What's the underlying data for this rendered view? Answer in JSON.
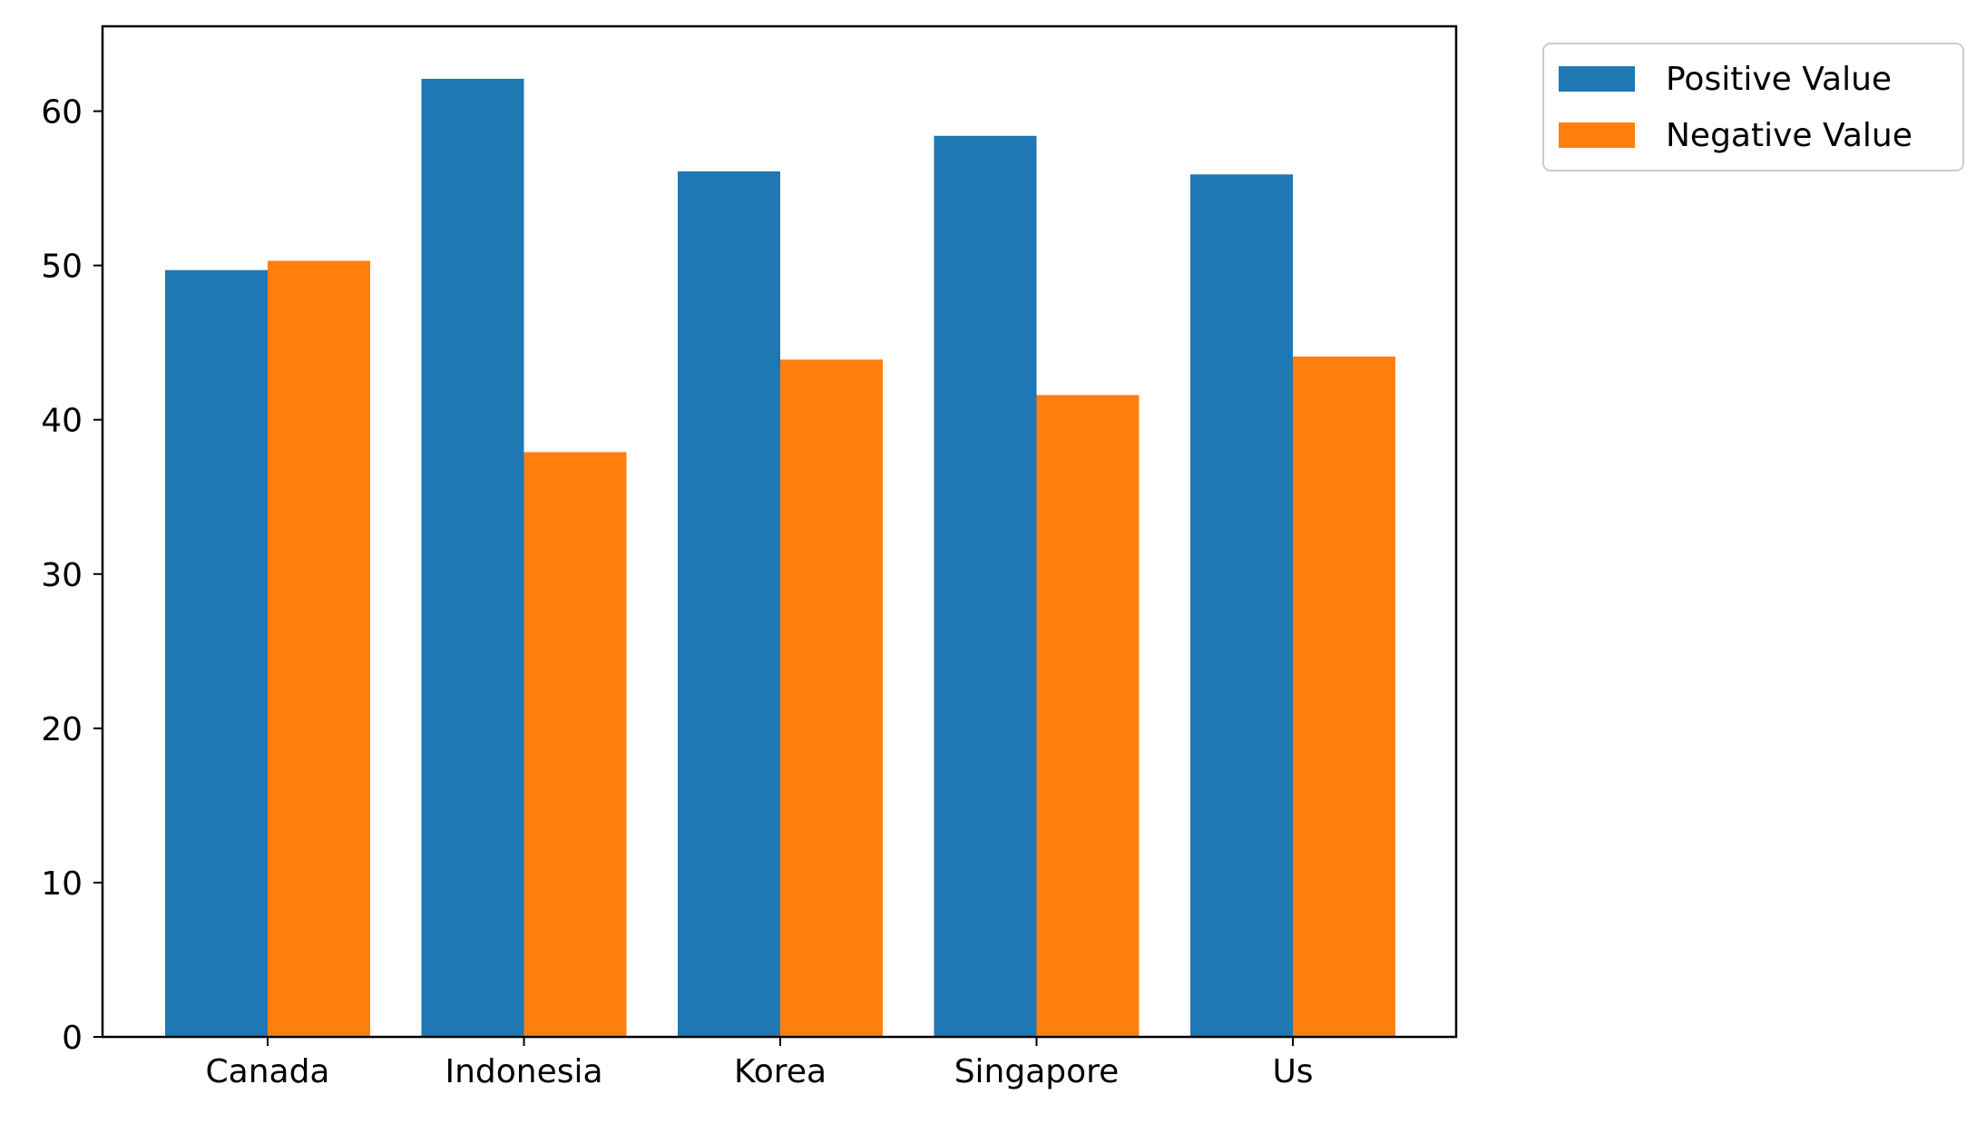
{
  "chart_data": {
    "type": "bar",
    "categories": [
      "Canada",
      "Indonesia",
      "Korea",
      "Singapore",
      "Us"
    ],
    "series": [
      {
        "name": "Positive Value",
        "color": "#1f77b4",
        "values": [
          49.7,
          62.1,
          56.1,
          58.4,
          55.9
        ]
      },
      {
        "name": "Negative Value",
        "color": "#ff7f0e",
        "values": [
          50.3,
          37.9,
          43.9,
          41.6,
          44.1
        ]
      }
    ],
    "title": "",
    "xlabel": "",
    "ylabel": "",
    "ylim": [
      0,
      65.5
    ],
    "yticks": [
      0,
      10,
      20,
      30,
      40,
      50,
      60
    ],
    "grid": false,
    "legend_position": "outside-top-right"
  }
}
